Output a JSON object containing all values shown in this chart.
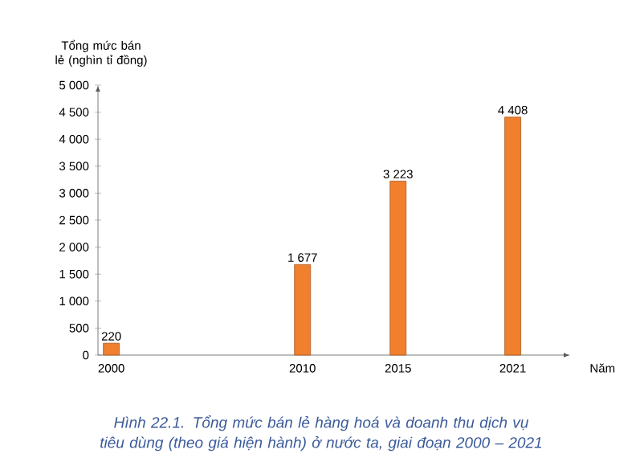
{
  "chart_data": {
    "type": "bar",
    "ylabel": "Tổng mức bán lẻ (nghìn tỉ đồng)",
    "xlabel": "Năm",
    "x": [
      2000,
      2010,
      2015,
      2021
    ],
    "values": [
      220,
      1677,
      3223,
      4408
    ],
    "value_labels": [
      "220",
      "1 677",
      "3 223",
      "4 408"
    ],
    "color": "#f07f2e",
    "xlim": [
      1999.3,
      2024
    ],
    "xticks": [
      2000,
      2010,
      2015,
      2021
    ],
    "ylim": [
      0,
      5000
    ],
    "yticks": [
      0,
      500,
      {
        "value": 1000,
        "label": "1 000"
      },
      {
        "value": 1500,
        "label": "1 500"
      },
      {
        "value": 2000,
        "label": "2 000"
      },
      {
        "value": 2500,
        "label": "2 500"
      },
      {
        "value": 3000,
        "label": "3 000"
      },
      {
        "value": 3500,
        "label": "3 500"
      },
      {
        "value": 4000,
        "label": "4 000"
      },
      {
        "value": 4500,
        "label": "4 500"
      },
      {
        "value": 5000,
        "label": "5 000"
      }
    ],
    "annotations": [
      "Hình 22.1. Tổng mức bán lẻ hàng hoá và doanh thu dịch vụ tiêu dùng (theo giá hiện hành) ở nước ta, giai đoạn 2000 – 2021"
    ]
  }
}
